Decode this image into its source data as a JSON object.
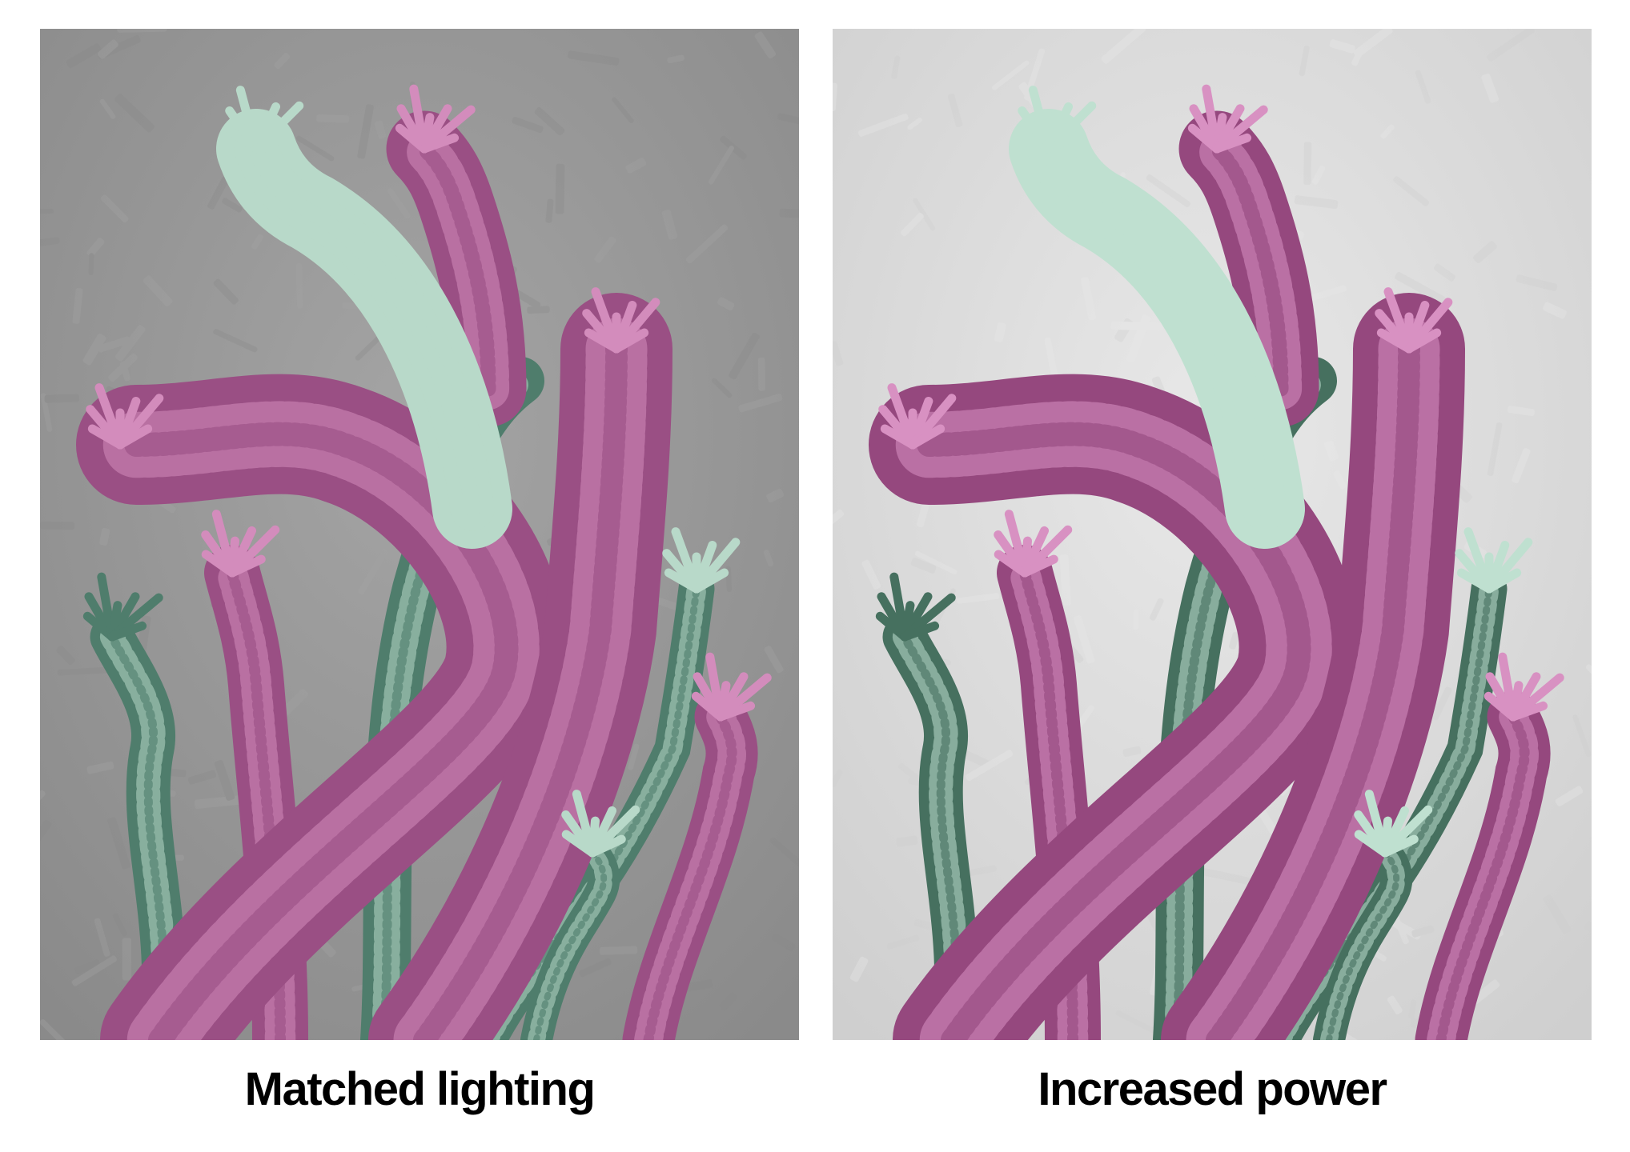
{
  "panels": [
    {
      "caption": "Matched lighting",
      "background": "#8a8a8a",
      "background_light": "#a4a4a4",
      "pink": "#9a4f84",
      "pink_light": "#d38cbc",
      "green": "#4f7d6c",
      "green_light": "#b8d9c9"
    },
    {
      "caption": "Increased power",
      "background": "#cfcfcf",
      "background_light": "#e8e8e8",
      "pink": "#95487e",
      "pink_light": "#d891c2",
      "green": "#46705f",
      "green_light": "#bfe0d0"
    }
  ],
  "icons": {
    "left_image": "painted-coral-tentacles-image",
    "right_image": "painted-coral-tentacles-image"
  }
}
